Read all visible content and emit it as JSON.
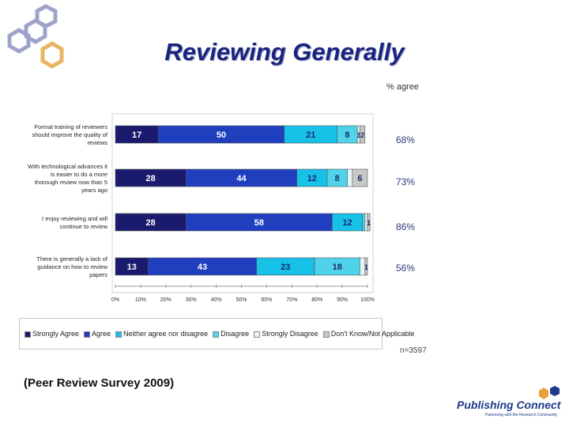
{
  "title": "Reviewing Generally",
  "source_note": "(Peer Review Survey 2009)",
  "agree_header": "% agree",
  "n_value": "n=3597",
  "logo": {
    "name": "Publishing Connect",
    "tagline": "Partnering with the Research Community"
  },
  "colors": {
    "title": "#1a237e",
    "strongly_agree": "#1a1a6e",
    "agree": "#1f3fbf",
    "neither": "#17c1e8",
    "disagree": "#4fd3ea",
    "strongly_disagree": "#e6f7fb",
    "dont_know": "#c8c8c8",
    "hex_blue": "#9fa3c9",
    "hex_orange": "#e9b465"
  },
  "chart_data": {
    "type": "bar",
    "orientation": "horizontal",
    "stacked": true,
    "categories": [
      "Formal training of reviewers should improve the quality of reviews",
      "With technological advances it is easier to do a more thorough review now than 5 years ago",
      "I enjoy reviewing and will continue to review",
      "There is generally a lack of guidance on how to review papers"
    ],
    "series": [
      {
        "name": "Strongly Agree",
        "values": [
          17,
          28,
          28,
          13
        ],
        "labels": [
          "17",
          "28",
          "28",
          "13"
        ]
      },
      {
        "name": "Agree",
        "values": [
          50,
          44,
          58,
          43
        ],
        "labels": [
          "50",
          "44",
          "58",
          "43"
        ]
      },
      {
        "name": "Neither agree nor disagree",
        "values": [
          21,
          12,
          12,
          23
        ],
        "labels": [
          "21",
          "12",
          "12",
          "23"
        ]
      },
      {
        "name": "Disagree",
        "values": [
          8,
          8,
          1,
          18
        ],
        "labels": [
          "8",
          "8",
          "",
          "18"
        ]
      },
      {
        "name": "Strongly Disagree",
        "values": [
          1,
          2,
          1,
          2
        ],
        "labels": [
          "1",
          "",
          "",
          ""
        ]
      },
      {
        "name": "Don't Know/Not Applicable",
        "values": [
          2,
          6,
          1,
          1
        ],
        "labels": [
          "2",
          "6",
          "1",
          "1"
        ]
      }
    ],
    "percent_agree": [
      "68%",
      "73%",
      "86%",
      "56%"
    ],
    "xlim": [
      0,
      100
    ],
    "x_ticks": [
      "0%",
      "10%",
      "20%",
      "30%",
      "40%",
      "50%",
      "60%",
      "70%",
      "80%",
      "90%",
      "100%"
    ],
    "legend_position": "bottom",
    "legend_entries": [
      "Strongly Agree",
      "Agree",
      "Neither agree nor disagree",
      "Disagree",
      "Strongly Disagree",
      "Don't Know/Not Applicable"
    ]
  }
}
